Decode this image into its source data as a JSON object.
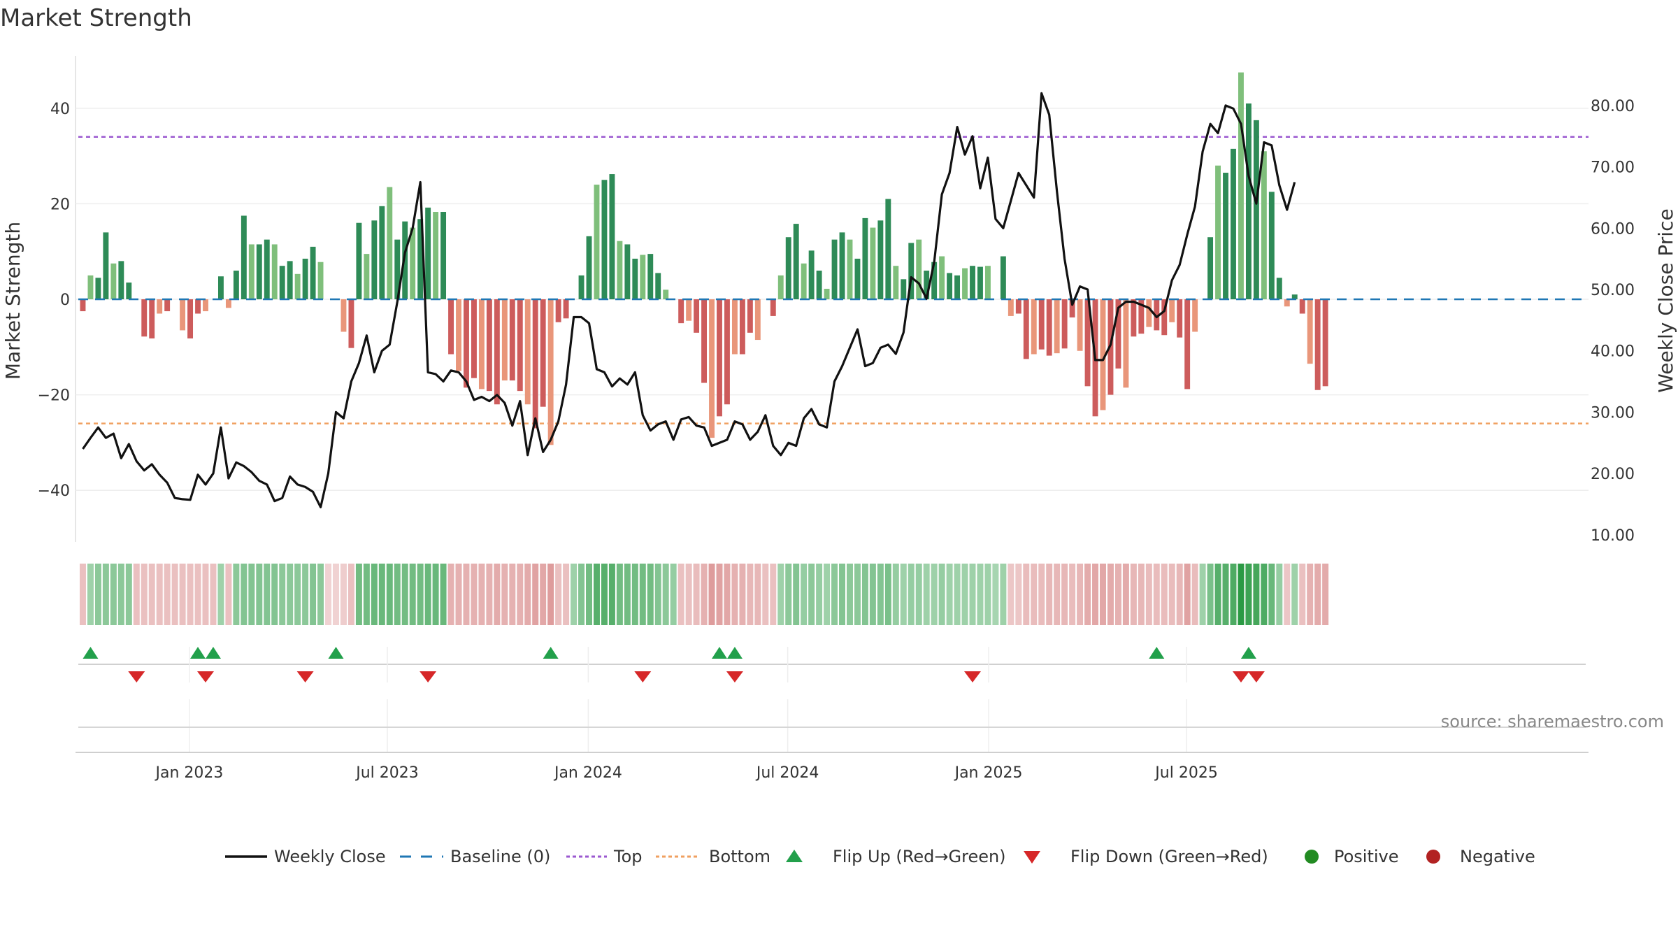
{
  "title": "Market Strength",
  "source": "source: sharemaestro.com",
  "colors": {
    "pos_strong": "#2e8b57",
    "pos_light": "#7fbf7b",
    "neg_strong": "#cd5c5c",
    "neg_light": "#e9967a",
    "close": "#111111",
    "baseline": "#1f77b4",
    "top": "#9b59d0",
    "bottom": "#f0a060",
    "flip_up": "#22a04b",
    "flip_down": "#d62728",
    "positive": "#228b22",
    "negative": "#b22222"
  },
  "chart_data": {
    "type": "bar",
    "title": "Market Strength",
    "ylabel": "Market Strength",
    "y2label": "Weekly Close Price",
    "ylim": [
      -50,
      50
    ],
    "y2lim": [
      10,
      85
    ],
    "yticks": [
      40,
      20,
      0,
      -20,
      -40
    ],
    "ytick_labels": [
      "40",
      "20",
      "0",
      "−20",
      "−40"
    ],
    "y2ticks": [
      80,
      70,
      60,
      50,
      40,
      30,
      20,
      10
    ],
    "y2tick_labels": [
      "80.00",
      "70.00",
      "60.00",
      "50.00",
      "40.00",
      "30.00",
      "20.00",
      "10.00"
    ],
    "xticks": [
      {
        "label": "Jan 2023",
        "week": 14.4
      },
      {
        "label": "Jul 2023",
        "week": 40.2
      },
      {
        "label": "Jan 2024",
        "week": 66.4
      },
      {
        "label": "Jul 2024",
        "week": 92.4
      },
      {
        "label": "Jan 2025",
        "week": 118.6
      },
      {
        "label": "Jul 2025",
        "week": 144.4
      }
    ],
    "top_line": 34,
    "bottom_line": -26,
    "baseline": 0,
    "strength": [
      -2.5,
      5,
      4.5,
      14,
      7.5,
      8,
      3.5,
      -0.3,
      -7.8,
      -8.2,
      -3,
      -2.5,
      -0.3,
      -6.5,
      -8.2,
      -3,
      -2.5,
      -0.3,
      4.8,
      -1.8,
      6,
      17.5,
      11.5,
      11.5,
      12.5,
      11.5,
      7,
      8,
      5.3,
      8.5,
      11,
      7.8,
      -0.3,
      -0.3,
      -6.8,
      -10.2,
      16,
      9.5,
      16.5,
      19.5,
      23.5,
      12.5,
      16.3,
      15,
      16.8,
      19.2,
      18.3,
      18.3,
      -11.5,
      -15,
      -18.5,
      -16.5,
      -18.8,
      -19.2,
      -22,
      -17,
      -17,
      -19.2,
      -22,
      -27,
      -22.5,
      -30.5,
      -4.8,
      -4,
      0.3,
      5,
      13.2,
      24,
      25,
      26.2,
      12.2,
      11.5,
      8.5,
      9.3,
      9.5,
      5.5,
      2,
      0.3,
      -5,
      -4.5,
      -7,
      -17.5,
      -29,
      -24.5,
      -22,
      -11.5,
      -11.5,
      -7,
      -8.5,
      -0.3,
      -3.5,
      5,
      13,
      15.8,
      7.5,
      10.2,
      6,
      2.2,
      12.5,
      14,
      12.5,
      8.5,
      17,
      15,
      16.5,
      21,
      7,
      4.2,
      11.8,
      12.5,
      6,
      7.8,
      9,
      5.5,
      5,
      6.5,
      7,
      6.8,
      7,
      0.3,
      9,
      -3.5,
      -3,
      -12.5,
      -11.5,
      -10.5,
      -11.8,
      -11.3,
      -10.3,
      -3.8,
      -10.8,
      -18.2,
      -24.5,
      -23.2,
      -20,
      -14.5,
      -18.5,
      -7.8,
      -7.2,
      -5.8,
      -6.5,
      -7.5,
      -4.8,
      -8,
      -18.8,
      -6.8,
      0.3,
      13,
      28,
      26.5,
      31.5,
      47.5,
      41,
      37.5,
      31,
      22.5,
      4.5,
      -1.5,
      1,
      -3,
      -13.5,
      -19,
      -18.2
    ],
    "close": [
      24,
      25.8,
      27.5,
      25.8,
      26.5,
      22.5,
      24.8,
      22,
      20.5,
      21.5,
      19.8,
      18.5,
      16,
      15.8,
      15.7,
      19.8,
      18.2,
      20,
      27.5,
      19.2,
      21.8,
      21.2,
      20.2,
      18.8,
      18.2,
      15.5,
      16,
      19.5,
      18.2,
      17.8,
      17,
      14.5,
      20,
      30,
      29,
      35,
      38,
      42.5,
      36.5,
      40,
      41,
      48,
      56,
      60,
      67.5,
      36.5,
      36.2,
      35,
      36.8,
      36.5,
      35,
      32,
      32.5,
      31.8,
      32.8,
      31.5,
      27.8,
      31.8,
      23,
      29,
      23.5,
      25.5,
      28.5,
      34.5,
      45.5,
      45.5,
      44.5,
      37,
      36.5,
      34.2,
      35.5,
      34.5,
      36.5,
      29.5,
      27,
      28,
      28.5,
      25.5,
      28.8,
      29.2,
      27.8,
      27.5,
      24.5,
      25,
      25.5,
      28.5,
      28,
      25.5,
      26.8,
      29.5,
      24.5,
      23,
      25,
      24.5,
      29,
      30.5,
      28,
      27.5,
      35,
      37.5,
      40.5,
      43.5,
      37.5,
      38,
      40.5,
      41,
      39.5,
      43,
      52,
      51,
      48.5,
      54.5,
      65.5,
      69,
      76.5,
      72,
      75,
      66.5,
      71.5,
      61.5,
      60,
      64.5,
      69,
      67,
      65,
      82,
      78.5,
      66,
      55,
      47.5,
      50.5,
      50,
      38.5,
      38.5,
      41,
      47,
      48,
      48,
      47.5,
      47,
      45.5,
      46.5,
      51.5,
      54,
      59,
      63.5,
      72.5,
      77,
      75.5,
      80,
      79.5,
      77,
      68.5,
      64,
      74,
      73.5,
      67,
      63,
      67.5
    ],
    "heat": [
      -0.3,
      0.3,
      0.4,
      0.4,
      0.4,
      0.4,
      0.4,
      -0.3,
      -0.3,
      -0.3,
      -0.3,
      -0.3,
      -0.3,
      -0.3,
      -0.3,
      -0.3,
      -0.3,
      -0.3,
      0.3,
      -0.3,
      0.4,
      0.45,
      0.45,
      0.45,
      0.45,
      0.45,
      0.4,
      0.4,
      0.4,
      0.4,
      0.45,
      0.4,
      -0.15,
      -0.15,
      -0.2,
      -0.3,
      0.55,
      0.55,
      0.6,
      0.6,
      0.6,
      0.55,
      0.55,
      0.55,
      0.55,
      0.6,
      0.6,
      0.6,
      -0.45,
      -0.45,
      -0.45,
      -0.45,
      -0.45,
      -0.45,
      -0.5,
      -0.45,
      -0.45,
      -0.45,
      -0.5,
      -0.6,
      -0.55,
      -0.65,
      -0.3,
      -0.3,
      0.3,
      0.45,
      0.55,
      0.7,
      0.7,
      0.7,
      0.55,
      0.55,
      0.55,
      0.55,
      0.55,
      0.45,
      0.4,
      0.35,
      -0.3,
      -0.3,
      -0.35,
      -0.45,
      -0.65,
      -0.6,
      -0.55,
      -0.45,
      -0.45,
      -0.4,
      -0.4,
      -0.3,
      -0.3,
      0.3,
      0.4,
      0.45,
      0.35,
      0.4,
      0.35,
      0.3,
      0.4,
      0.45,
      0.4,
      0.4,
      0.45,
      0.45,
      0.45,
      0.5,
      0.35,
      0.3,
      0.35,
      0.35,
      0.3,
      0.3,
      0.35,
      0.3,
      0.3,
      0.3,
      0.3,
      0.3,
      0.3,
      0.25,
      0.3,
      -0.25,
      -0.25,
      -0.35,
      -0.35,
      -0.35,
      -0.4,
      -0.4,
      -0.4,
      -0.35,
      -0.4,
      -0.5,
      -0.55,
      -0.55,
      -0.5,
      -0.45,
      -0.5,
      -0.4,
      -0.4,
      -0.35,
      -0.35,
      -0.35,
      -0.35,
      -0.4,
      -0.6,
      -0.35,
      0.3,
      0.5,
      0.7,
      0.7,
      0.75,
      0.95,
      0.85,
      0.8,
      0.75,
      0.6,
      0.35,
      -0.25,
      0.3,
      -0.3,
      -0.45,
      -0.5,
      -0.5
    ],
    "flips_up": [
      1,
      15,
      17,
      33,
      61,
      83,
      85,
      140,
      152
    ],
    "flips_down": [
      7,
      16,
      29,
      45,
      73,
      85,
      116,
      151,
      153
    ],
    "legend": [
      {
        "label": "Weekly Close",
        "kind": "line"
      },
      {
        "label": "Baseline (0)",
        "kind": "dash"
      },
      {
        "label": "Top",
        "kind": "dot-purple"
      },
      {
        "label": "Bottom",
        "kind": "dot-orange"
      },
      {
        "label": "Flip Up (Red→Green)",
        "kind": "tri-up"
      },
      {
        "label": "Flip Down (Green→Red)",
        "kind": "tri-down"
      },
      {
        "label": "Positive",
        "kind": "circle-green"
      },
      {
        "label": "Negative",
        "kind": "circle-red"
      }
    ]
  }
}
